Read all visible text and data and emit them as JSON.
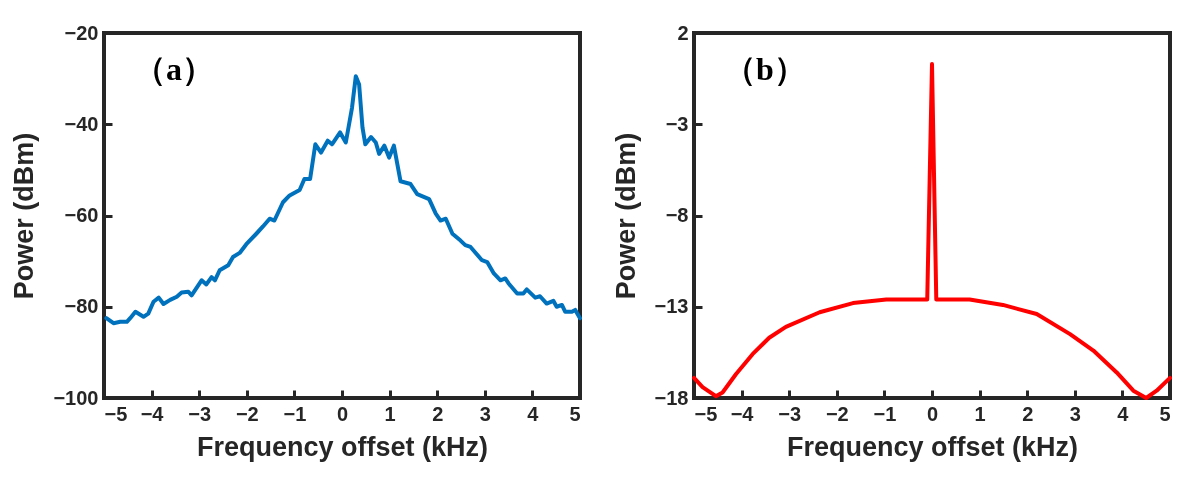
{
  "chart_data": [
    {
      "type": "line",
      "xlabel": "Frequency offset (kHz)",
      "ylabel": "Power (dBm)",
      "annotations": [
        "（a）"
      ],
      "xlim": [
        -5,
        5
      ],
      "xticks": [
        -5,
        -4,
        -3,
        -2,
        -1,
        0,
        1,
        2,
        3,
        4,
        5
      ],
      "ylim": [
        -100,
        -20
      ],
      "yticks": [
        -100,
        -80,
        -60,
        -40,
        -20
      ],
      "series": [
        {
          "color": "#0072bd",
          "x": [
            -4.95,
            -4.8,
            -4.66,
            -4.52,
            -4.45,
            -4.34,
            -4.17,
            -4.07,
            -3.96,
            -3.85,
            -3.75,
            -3.61,
            -3.47,
            -3.37,
            -3.23,
            -3.16,
            -2.95,
            -2.85,
            -2.74,
            -2.67,
            -2.57,
            -2.39,
            -2.29,
            -2.15,
            -2.01,
            -1.8,
            -1.66,
            -1.52,
            -1.42,
            -1.24,
            -1.1,
            -0.89,
            -0.79,
            -0.67,
            -0.56,
            -0.44,
            -0.3,
            -0.21,
            -0.04,
            0.08,
            0.21,
            0.29,
            0.36,
            0.43,
            0.49,
            0.61,
            0.71,
            0.78,
            0.89,
            0.99,
            1.09,
            1.23,
            1.44,
            1.58,
            1.83,
            1.97,
            2.07,
            2.18,
            2.32,
            2.49,
            2.59,
            2.7,
            2.94,
            3.05,
            3.19,
            3.33,
            3.43,
            3.5,
            3.68,
            3.81,
            3.88,
            4.06,
            4.16,
            4.3,
            4.44,
            4.51,
            4.62,
            4.69,
            4.83,
            4.9,
            5.0
          ],
          "values": [
            -82.5,
            -83.6,
            -83.3,
            -83.3,
            -82.5,
            -81.1,
            -82.2,
            -81.5,
            -78.9,
            -78,
            -79.4,
            -78.5,
            -77.8,
            -76.9,
            -76.7,
            -77.5,
            -74.2,
            -75.1,
            -73.5,
            -74.2,
            -72,
            -70.9,
            -69.1,
            -68.2,
            -66.3,
            -64,
            -62.4,
            -60.7,
            -61.1,
            -57.1,
            -55.6,
            -54.4,
            -52,
            -52,
            -44.4,
            -46.2,
            -43.6,
            -44.4,
            -41.8,
            -44,
            -36.4,
            -29.5,
            -31.3,
            -40.7,
            -44.4,
            -42.8,
            -44,
            -46.5,
            -44.7,
            -47.3,
            -44.7,
            -52.5,
            -53.1,
            -55.3,
            -56.4,
            -59.6,
            -61.1,
            -60.7,
            -64,
            -65.5,
            -66.5,
            -66.9,
            -69.8,
            -70.2,
            -72.7,
            -74.2,
            -73.8,
            -74.9,
            -77.1,
            -77.1,
            -76.2,
            -78,
            -77.7,
            -79.3,
            -78.7,
            -80,
            -79.6,
            -81.1,
            -81.1,
            -80.7,
            -82.5
          ]
        }
      ]
    },
    {
      "type": "line",
      "xlabel": "Frequency offset (kHz)",
      "ylabel": "Power (dBm)",
      "annotations": [
        "（b）"
      ],
      "xlim": [
        -5,
        5
      ],
      "xticks": [
        -5,
        -4,
        -3,
        -2,
        -1,
        0,
        1,
        2,
        3,
        4,
        5
      ],
      "ylim": [
        -18,
        2
      ],
      "yticks": [
        -18,
        -13,
        -8,
        -3,
        2
      ],
      "series": [
        {
          "color": "#ff0000",
          "x": [
            -5,
            -4.82,
            -4.54,
            -4.4,
            -4.12,
            -3.77,
            -3.42,
            -3.07,
            -2.36,
            -1.66,
            -0.96,
            -0.1,
            0,
            0.09,
            0.79,
            1.49,
            2.2,
            2.9,
            3.39,
            3.88,
            4.23,
            4.5,
            4.72,
            5.0
          ],
          "values": [
            -16.9,
            -17.4,
            -17.9,
            -17.7,
            -16.7,
            -15.6,
            -14.7,
            -14.1,
            -13.3,
            -12.8,
            -12.6,
            -12.6,
            0.3,
            -12.6,
            -12.6,
            -12.9,
            -13.4,
            -14.5,
            -15.4,
            -16.6,
            -17.6,
            -18.0,
            -17.6,
            -16.9
          ]
        }
      ]
    }
  ]
}
